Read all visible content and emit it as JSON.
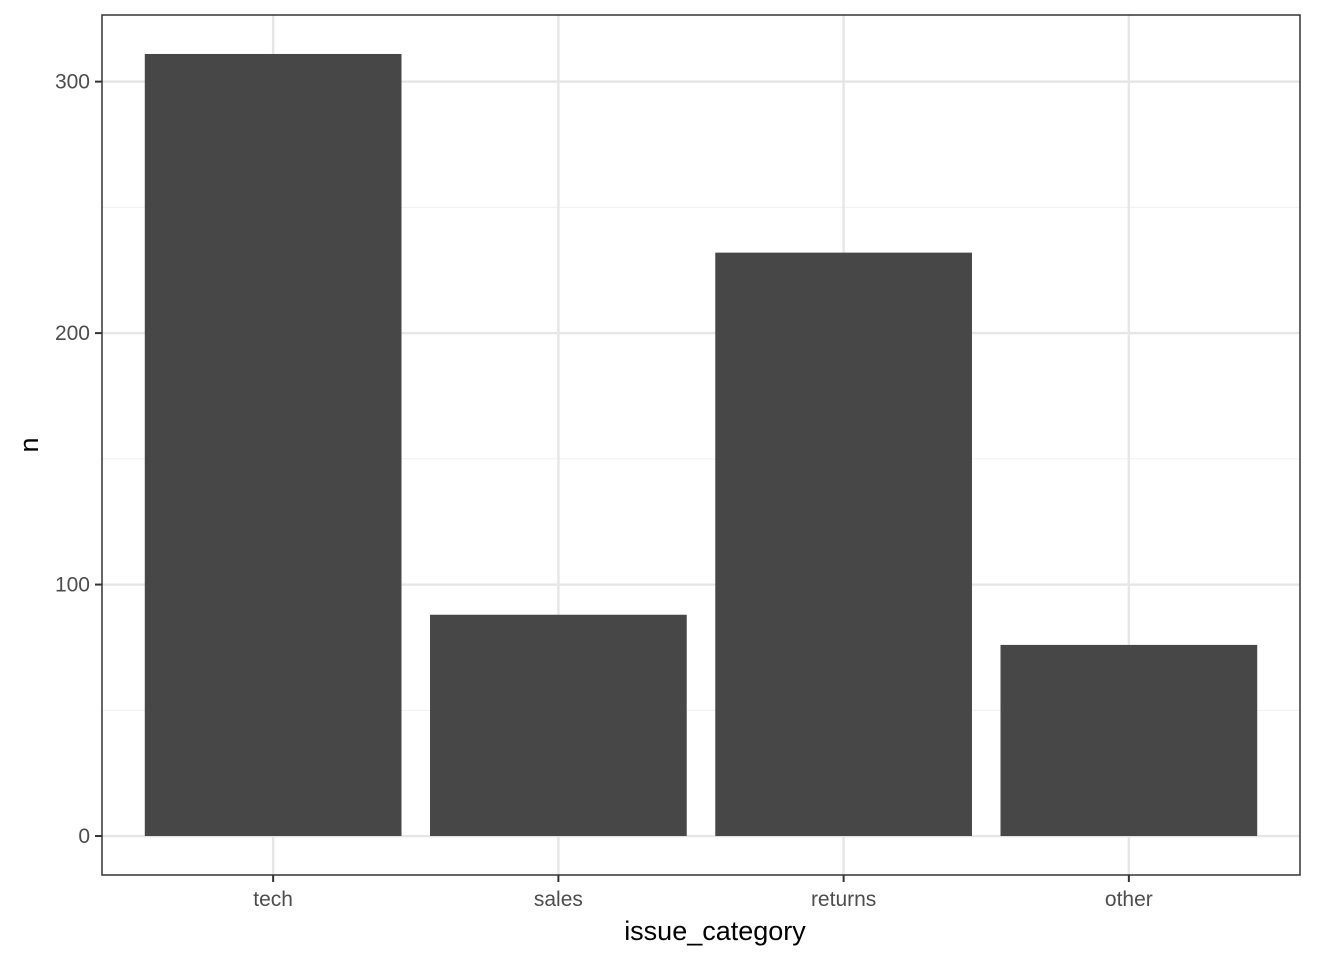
{
  "chart_data": {
    "type": "bar",
    "categories": [
      "tech",
      "sales",
      "returns",
      "other"
    ],
    "values": [
      311,
      88,
      232,
      76
    ],
    "title": "",
    "xlabel": "issue_category",
    "ylabel": "n",
    "ylim": [
      -15.5,
      326.5
    ],
    "yticks": [
      0,
      100,
      200,
      300
    ],
    "yticks_minor": [
      50,
      150,
      250
    ],
    "ytick_labels": [
      "0",
      "100",
      "200",
      "300"
    ],
    "grid": true,
    "legend": "none",
    "colors": {
      "bar": "#474747",
      "panel_border": "#333333",
      "grid_major": "#e6e6e6",
      "grid_minor": "#f2f2f2",
      "tick_text": "#4d4d4d",
      "axis_title": "#000000",
      "background": "#ffffff"
    }
  }
}
